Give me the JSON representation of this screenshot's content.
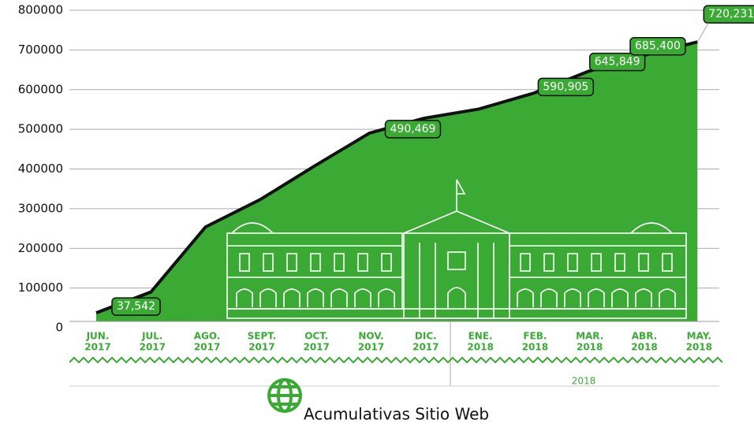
{
  "chart_data": {
    "type": "area",
    "title": "Acumulativas Sitio Web",
    "categories": [
      [
        "JUN.",
        "2017"
      ],
      [
        "JUL.",
        "2017"
      ],
      [
        "AGO.",
        "2017"
      ],
      [
        "SEPT.",
        "2017"
      ],
      [
        "OCT.",
        "2017"
      ],
      [
        "NOV.",
        "2017"
      ],
      [
        "DIC.",
        "2017"
      ],
      [
        "ENE.",
        "2018"
      ],
      [
        "FEB.",
        "2018"
      ],
      [
        "MAR.",
        "2018"
      ],
      [
        "ABR.",
        "2018"
      ],
      [
        "MAY.",
        "2018"
      ]
    ],
    "group_label": "2018",
    "values": [
      37542,
      90000,
      254000,
      323000,
      408000,
      490469,
      528000,
      551000,
      590905,
      645849,
      685400,
      720231
    ],
    "value_labels": [
      "37,542",
      null,
      null,
      null,
      null,
      "490,469",
      null,
      null,
      "590,905",
      "645,849",
      "685,400",
      "720,231"
    ],
    "color": "#3aaa35",
    "line_color": "#111111",
    "ylim": [
      0,
      800000
    ],
    "yticks": [
      0,
      100000,
      200000,
      300000,
      400000,
      500000,
      600000,
      700000,
      800000
    ],
    "grid": true
  }
}
